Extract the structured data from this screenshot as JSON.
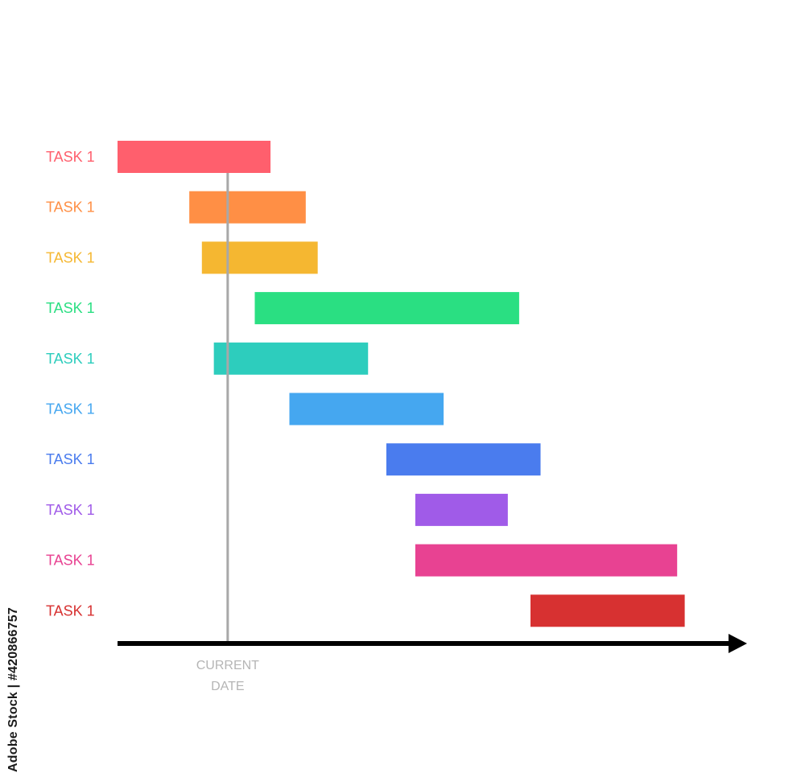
{
  "chart_data": {
    "type": "gantt",
    "title": "",
    "xlabel": "",
    "ylabel": "",
    "xlim": [
      0,
      100
    ],
    "current_date": {
      "label_line1": "CURRENT",
      "label_line2": "DATE",
      "x": 17.5
    },
    "tasks": [
      {
        "label": "TASK 1",
        "start": 0.0,
        "end": 24.3,
        "color": "#ff5f6d"
      },
      {
        "label": "TASK 1",
        "start": 11.4,
        "end": 29.9,
        "color": "#ff8f45"
      },
      {
        "label": "TASK 1",
        "start": 13.4,
        "end": 31.8,
        "color": "#f5b731"
      },
      {
        "label": "TASK 1",
        "start": 21.8,
        "end": 63.8,
        "color": "#2adf82"
      },
      {
        "label": "TASK 1",
        "start": 15.3,
        "end": 39.8,
        "color": "#2dcdbd"
      },
      {
        "label": "TASK 1",
        "start": 27.3,
        "end": 51.8,
        "color": "#45a7f0"
      },
      {
        "label": "TASK 1",
        "start": 42.7,
        "end": 67.2,
        "color": "#4a7cee"
      },
      {
        "label": "TASK 1",
        "start": 47.3,
        "end": 62.0,
        "color": "#a05be8"
      },
      {
        "label": "TASK 1",
        "start": 47.3,
        "end": 88.9,
        "color": "#e84292"
      },
      {
        "label": "TASK 1",
        "start": 65.6,
        "end": 90.1,
        "color": "#d73131"
      }
    ],
    "grid": false,
    "legend": "none"
  },
  "watermark": {
    "text": "Adobe Stock | #420866757"
  }
}
